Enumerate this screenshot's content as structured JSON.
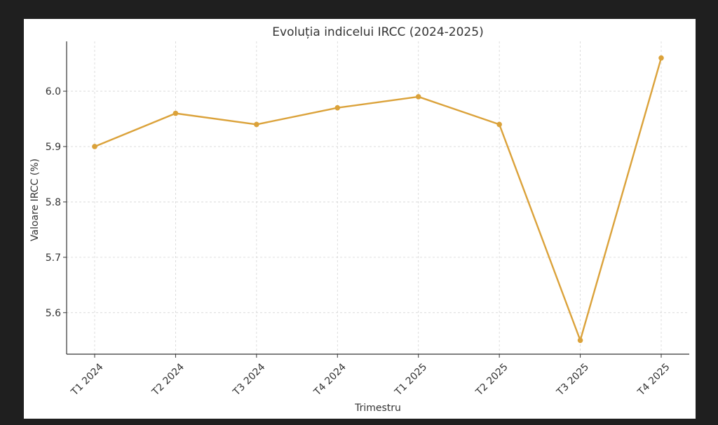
{
  "chart_data": {
    "type": "line",
    "title": "Evoluția indicelui IRCC (2024-2025)",
    "xlabel": "Trimestru",
    "ylabel": "Valoare IRCC (%)",
    "categories": [
      "T1 2024",
      "T2 2024",
      "T3 2024",
      "T4 2024",
      "T1 2025",
      "T2 2025",
      "T3 2025",
      "T4 2025"
    ],
    "series": [
      {
        "values": [
          5.9,
          5.96,
          5.94,
          5.97,
          5.99,
          5.94,
          5.55,
          6.06
        ]
      }
    ],
    "ylim": [
      5.525,
      6.09
    ],
    "yticks": [
      "5.6",
      "5.7",
      "5.8",
      "5.9",
      "6.0"
    ],
    "grid": true,
    "line_color": "#dba23a",
    "axis_color": "#333333",
    "grid_color": "#d4d4d4"
  }
}
